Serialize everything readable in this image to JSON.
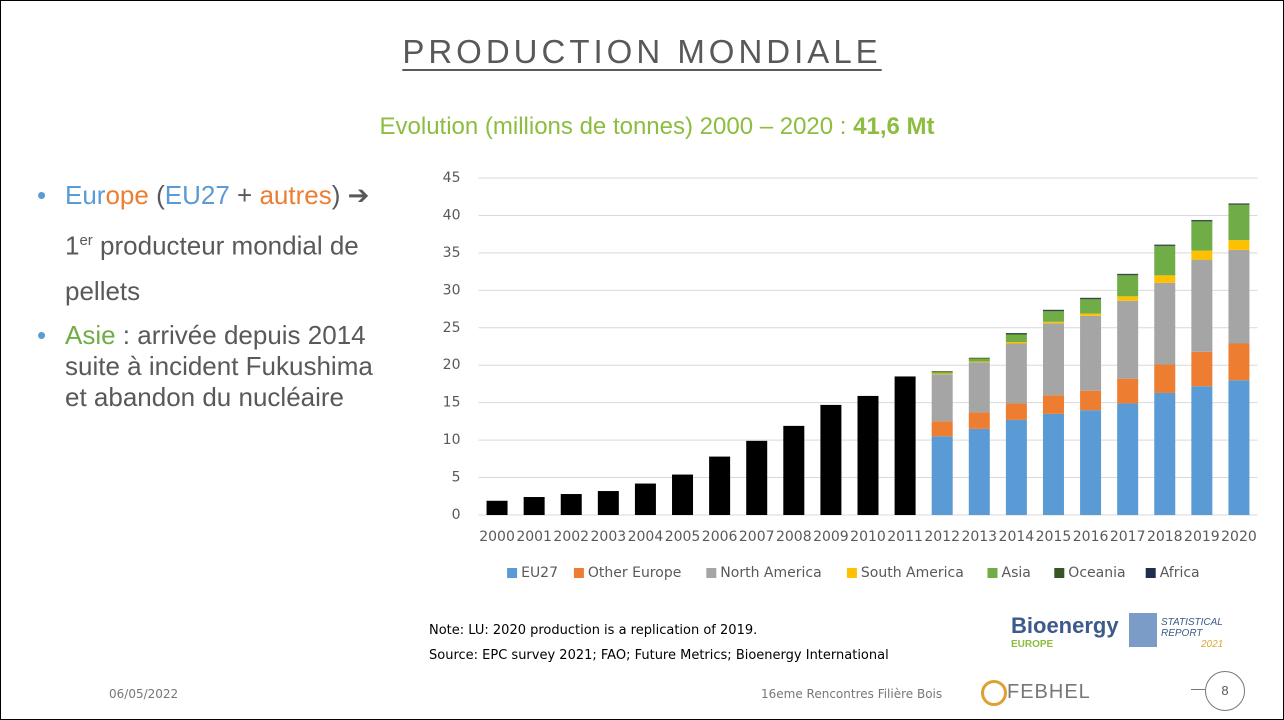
{
  "slide": {
    "title": "PRODUCTION MONDIALE",
    "subtitle": {
      "text": "Evolution (millions de tonnes) 2000 – 2020 : ",
      "bold": "41,6 Mt"
    },
    "bullets": [
      [
        {
          "text": "Eur",
          "color": "#5b9bd5"
        },
        {
          "text": "ope",
          "color": "#ed7d31"
        },
        {
          "text": " (",
          "color": "#595959"
        },
        {
          "text": "EU27",
          "color": "#5b9bd5"
        },
        {
          "text": " + ",
          "color": "#595959"
        },
        {
          "text": "autres",
          "color": "#ed7d31"
        },
        {
          "text": ") ➔ 1",
          "color": "#595959"
        },
        {
          "text": "er",
          "color": "#595959",
          "sup": true
        },
        {
          "text": " producteur mondial de pellets",
          "color": "#595959"
        }
      ],
      [
        {
          "text": "Asie",
          "color": "#70ad47"
        },
        {
          "text": " : arrivée depuis 2014 suite à incident Fukushima et abandon du nucléaire",
          "color": "#595959"
        }
      ]
    ],
    "notes": [
      "Note: LU: 2020 production is a replication of 2019.",
      "Source: EPC survey 2021; FAO; Future Metrics; Bioenergy International"
    ],
    "logos": {
      "bioenergy": "Bioenergy",
      "europe": "EUROPE",
      "report": [
        "STATISTICAL",
        "REPORT",
        "2021"
      ],
      "febhel": "FEBHEL"
    },
    "footer": {
      "date": "06/05/2022",
      "event": "16eme Rencontres Filière Bois",
      "page": "8"
    }
  },
  "chart_data": {
    "type": "stacked_bar",
    "categories": [
      "2000",
      "2001",
      "2002",
      "2003",
      "2004",
      "2005",
      "2006",
      "2007",
      "2008",
      "2009",
      "2010",
      "2011",
      "2012",
      "2013",
      "2014",
      "2015",
      "2016",
      "2017",
      "2018",
      "2019",
      "2020"
    ],
    "series": [
      {
        "color": "#000000",
        "values": [
          1.9,
          2.4,
          2.8,
          3.2,
          4.2,
          5.4,
          7.8,
          9.9,
          11.9,
          14.7,
          15.9,
          18.5,
          null,
          null,
          null,
          null,
          null,
          null,
          null,
          null,
          null
        ]
      },
      {
        "name": "EU27",
        "color": "#5b9bd5",
        "values": [
          null,
          null,
          null,
          null,
          null,
          null,
          null,
          null,
          null,
          null,
          null,
          null,
          10.5,
          11.5,
          12.7,
          13.5,
          14.0,
          14.9,
          16.3,
          17.2,
          18.0
        ]
      },
      {
        "name": "Other Europe",
        "color": "#ed7d31",
        "values": [
          null,
          null,
          null,
          null,
          null,
          null,
          null,
          null,
          null,
          null,
          null,
          null,
          2.0,
          2.2,
          2.2,
          2.5,
          2.6,
          3.3,
          3.8,
          4.6,
          4.9
        ]
      },
      {
        "name": "North America",
        "color": "#a5a5a5",
        "values": [
          null,
          null,
          null,
          null,
          null,
          null,
          null,
          null,
          null,
          null,
          null,
          null,
          6.3,
          6.7,
          8.0,
          9.6,
          10.0,
          10.4,
          10.9,
          12.3,
          12.5
        ]
      },
      {
        "name": "South America",
        "color": "#ffc000",
        "values": [
          null,
          null,
          null,
          null,
          null,
          null,
          null,
          null,
          null,
          null,
          null,
          null,
          0.1,
          0.1,
          0.2,
          0.2,
          0.3,
          0.6,
          1.0,
          1.2,
          1.3
        ]
      },
      {
        "name": "Asia",
        "color": "#70ad47",
        "values": [
          null,
          null,
          null,
          null,
          null,
          null,
          null,
          null,
          null,
          null,
          null,
          null,
          0.2,
          0.4,
          1.0,
          1.4,
          1.9,
          2.8,
          3.9,
          3.9,
          4.7
        ]
      },
      {
        "name": "Oceania",
        "color": "#375623",
        "values": [
          null,
          null,
          null,
          null,
          null,
          null,
          null,
          null,
          null,
          null,
          null,
          null,
          0.1,
          0.1,
          0.1,
          0.1,
          0.1,
          0.1,
          0.1,
          0.1,
          0.1
        ]
      },
      {
        "name": "Africa",
        "color": "#1f2e4d",
        "values": [
          null,
          null,
          null,
          null,
          null,
          null,
          null,
          null,
          null,
          null,
          null,
          null,
          0.0,
          0.0,
          0.1,
          0.1,
          0.1,
          0.1,
          0.1,
          0.1,
          0.1
        ]
      }
    ],
    "ylim": [
      0,
      45
    ],
    "yticks": [
      0,
      5,
      10,
      15,
      20,
      25,
      30,
      35,
      40,
      45
    ],
    "grid": true,
    "legend": "bottom"
  }
}
